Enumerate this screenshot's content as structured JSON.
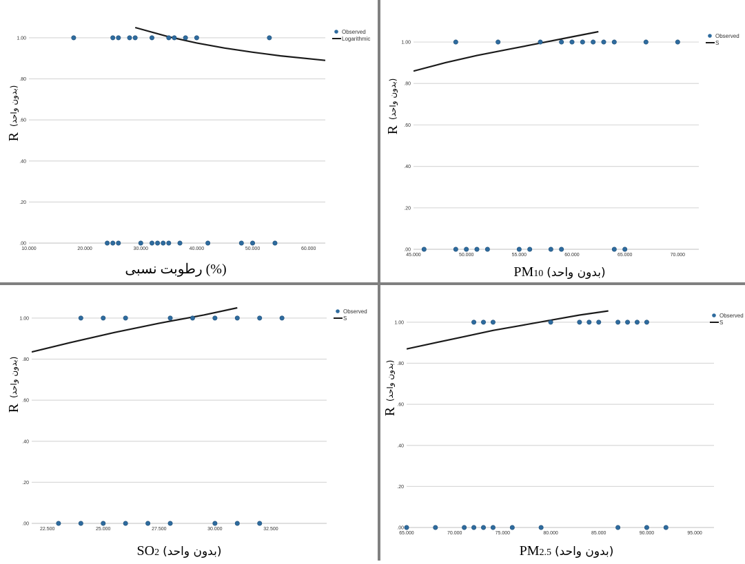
{
  "chart_data": [
    {
      "id": "rh",
      "type": "scatter",
      "xlabel": "رطوبت نسبی (%)",
      "ylabel_symbol": "R",
      "ylabel_unit": "(بدون واحد)",
      "x_ticks": [
        "10.000",
        "20.000",
        "30.000",
        "40.000",
        "50.000",
        "60.000"
      ],
      "y_ticks": [
        ".00",
        ".20",
        ".40",
        ".60",
        ".80",
        "1.00"
      ],
      "xlim": [
        10,
        63
      ],
      "ylim": [
        0,
        1.05
      ],
      "legend": [
        "Observed",
        "Logarithmic"
      ],
      "observed": {
        "ones": [
          18,
          25,
          26,
          28,
          29,
          32,
          35,
          36,
          38,
          40,
          53
        ],
        "zeros": [
          24,
          25,
          26,
          30,
          32,
          33,
          34,
          35,
          37,
          42,
          48,
          50,
          54
        ]
      },
      "fit": [
        [
          29,
          1.05
        ],
        [
          35,
          1.005
        ],
        [
          40,
          0.975
        ],
        [
          45,
          0.95
        ],
        [
          50,
          0.93
        ],
        [
          55,
          0.912
        ],
        [
          63,
          0.89
        ]
      ]
    },
    {
      "id": "pm10",
      "type": "scatter",
      "xlabel_main": "PM",
      "xlabel_sub": "10",
      "xlabel_unit": "(بدون واحد)",
      "ylabel_symbol": "R",
      "ylabel_unit": "(بدون واحد)",
      "x_ticks": [
        "45.000",
        "50.000",
        "55.000",
        "60.000",
        "65.000",
        "70.000"
      ],
      "y_ticks": [
        ".00",
        ".20",
        ".40",
        ".60",
        ".80",
        "1.00"
      ],
      "xlim": [
        45,
        72
      ],
      "ylim": [
        0,
        1.05
      ],
      "legend": [
        "Observed",
        "S"
      ],
      "observed": {
        "ones": [
          49,
          53,
          57,
          59,
          60,
          61,
          62,
          63,
          64,
          67,
          70
        ],
        "zeros": [
          46,
          49,
          50,
          51,
          52,
          55,
          56,
          58,
          59,
          64,
          65
        ]
      },
      "fit": [
        [
          45,
          0.86
        ],
        [
          48,
          0.9
        ],
        [
          51,
          0.935
        ],
        [
          54,
          0.965
        ],
        [
          57,
          0.995
        ],
        [
          60,
          1.025
        ],
        [
          62.5,
          1.05
        ]
      ]
    },
    {
      "id": "so2",
      "type": "scatter",
      "xlabel_main": "SO",
      "xlabel_sub": "2",
      "xlabel_unit": "(بدون واحد)",
      "ylabel_symbol": "R",
      "ylabel_unit": "(بدون واحد)",
      "x_ticks": [
        "22.500",
        "25.000",
        "27.500",
        "30.000",
        "32.500"
      ],
      "y_ticks": [
        ".00",
        ".20",
        ".40",
        ".60",
        ".80",
        "1.00"
      ],
      "xlim": [
        21.8,
        35
      ],
      "ylim": [
        0,
        1.05
      ],
      "legend": [
        "Observed",
        "S"
      ],
      "observed": {
        "ones": [
          24,
          25,
          26,
          28,
          29,
          30,
          31,
          32,
          33
        ],
        "zeros": [
          23,
          24,
          25,
          26,
          27,
          28,
          30,
          31,
          32
        ]
      },
      "fit": [
        [
          21.8,
          0.835
        ],
        [
          23.5,
          0.88
        ],
        [
          25.5,
          0.93
        ],
        [
          27.5,
          0.975
        ],
        [
          29.5,
          1.015
        ],
        [
          31,
          1.05
        ]
      ]
    },
    {
      "id": "pm25",
      "type": "scatter",
      "xlabel_main": "PM",
      "xlabel_sub": "2.5",
      "xlabel_unit": "(بدون واحد)",
      "ylabel_symbol": "R",
      "ylabel_unit": "(بدون واحد)",
      "x_ticks": [
        "65.000",
        "70.000",
        "75.000",
        "80.000",
        "85.000",
        "90.000",
        "95.000"
      ],
      "y_ticks": [
        ".00",
        ".20",
        ".40",
        ".60",
        ".80",
        "1.00"
      ],
      "xlim": [
        65,
        97
      ],
      "ylim": [
        0,
        1.05
      ],
      "legend": [
        "Observed",
        "S"
      ],
      "observed": {
        "ones": [
          72,
          73,
          74,
          80,
          83,
          84,
          85,
          87,
          88,
          89,
          90
        ],
        "zeros": [
          65,
          68,
          71,
          72,
          73,
          74,
          76,
          79,
          87,
          90,
          92
        ]
      },
      "fit": [
        [
          65,
          0.87
        ],
        [
          68,
          0.9
        ],
        [
          71,
          0.93
        ],
        [
          74,
          0.96
        ],
        [
          77,
          0.985
        ],
        [
          80,
          1.01
        ],
        [
          83,
          1.035
        ],
        [
          86,
          1.055
        ]
      ]
    }
  ],
  "style": {
    "marker_color": "#2e6b9e",
    "fit_color": "#1a1a1a",
    "grid_color": "#d9d9d9"
  }
}
